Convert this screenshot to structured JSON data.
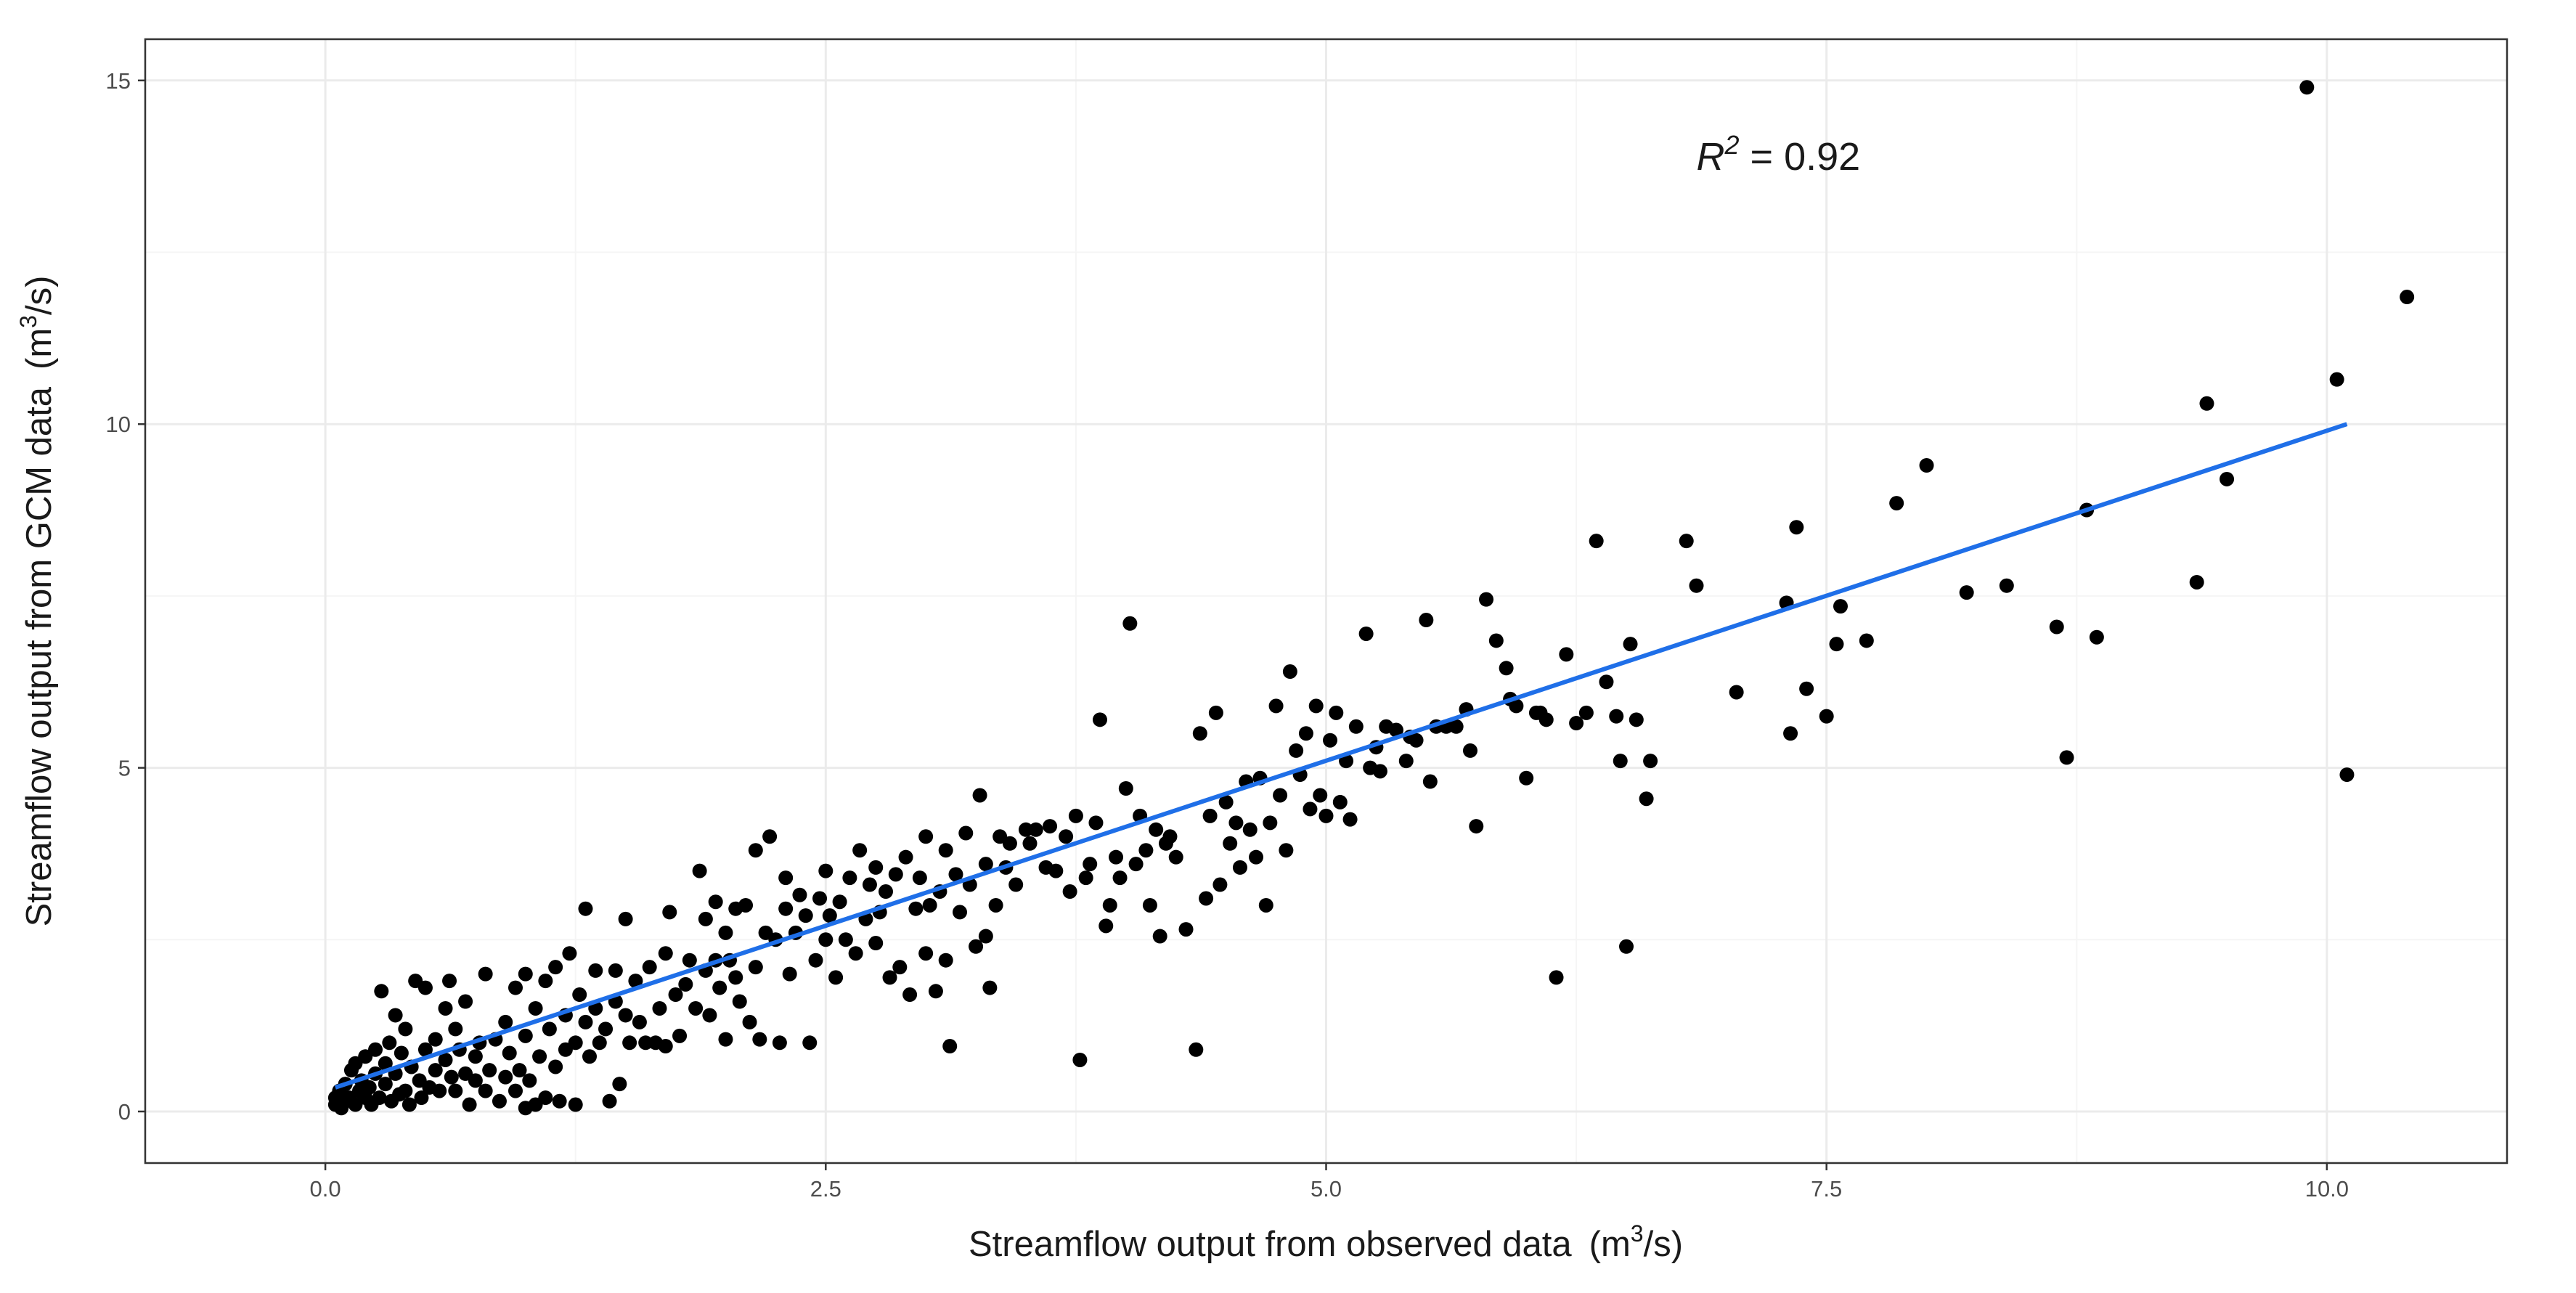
{
  "chart_data": {
    "type": "scatter",
    "title": "",
    "xlabel": {
      "prefix": "Streamflow output from observed data",
      "unit_open": "(m",
      "unit_sup": "3",
      "unit_close": "/s)"
    },
    "ylabel": {
      "prefix": "Streamflow output from GCM data",
      "unit_open": "(m",
      "unit_sup": "3",
      "unit_close": "/s)"
    },
    "xlim": [
      -0.9,
      10.9
    ],
    "ylim": [
      -0.75,
      15.6
    ],
    "x_ticks": [
      0.0,
      2.5,
      5.0,
      7.5,
      10.0
    ],
    "x_tick_labels": [
      "0.0",
      "2.5",
      "5.0",
      "7.5",
      "10.0"
    ],
    "y_ticks": [
      0,
      5,
      10,
      15
    ],
    "y_tick_labels": [
      "0",
      "5",
      "10",
      "15"
    ],
    "grid": true,
    "annotation": {
      "symbol": "R",
      "sup": "2",
      "text": " = 0.92",
      "x": 6.85,
      "y": 13.7
    },
    "colors": {
      "points": "#000000",
      "fit_line": "#1f6fe8",
      "grid_major": "#ebebeb",
      "grid_minor": "#f5f5f5",
      "panel_border": "#333333",
      "background": "#ffffff"
    },
    "fit_line": {
      "x": [
        0.05,
        10.1
      ],
      "y": [
        0.35,
        10.0
      ]
    },
    "series": [
      {
        "name": "points",
        "points": [
          [
            0.05,
            0.1
          ],
          [
            0.05,
            0.2
          ],
          [
            0.07,
            0.3
          ],
          [
            0.08,
            0.05
          ],
          [
            0.1,
            0.15
          ],
          [
            0.1,
            0.4
          ],
          [
            0.12,
            0.2
          ],
          [
            0.13,
            0.6
          ],
          [
            0.15,
            0.1
          ],
          [
            0.15,
            0.7
          ],
          [
            0.17,
            0.3
          ],
          [
            0.18,
            0.45
          ],
          [
            0.2,
            0.2
          ],
          [
            0.2,
            0.8
          ],
          [
            0.22,
            0.35
          ],
          [
            0.23,
            0.1
          ],
          [
            0.25,
            0.55
          ],
          [
            0.25,
            0.9
          ],
          [
            0.27,
            0.2
          ],
          [
            0.28,
            1.75
          ],
          [
            0.3,
            0.4
          ],
          [
            0.3,
            0.7
          ],
          [
            0.32,
            1.0
          ],
          [
            0.33,
            0.15
          ],
          [
            0.35,
            1.4
          ],
          [
            0.35,
            0.55
          ],
          [
            0.37,
            0.25
          ],
          [
            0.38,
            0.85
          ],
          [
            0.4,
            0.3
          ],
          [
            0.4,
            1.2
          ],
          [
            0.42,
            0.1
          ],
          [
            0.43,
            0.65
          ],
          [
            0.45,
            1.9
          ],
          [
            0.47,
            0.45
          ],
          [
            0.48,
            0.2
          ],
          [
            0.5,
            1.8
          ],
          [
            0.5,
            0.9
          ],
          [
            0.52,
            0.35
          ],
          [
            0.55,
            1.05
          ],
          [
            0.55,
            0.6
          ],
          [
            0.57,
            0.3
          ],
          [
            0.6,
            1.5
          ],
          [
            0.6,
            0.75
          ],
          [
            0.62,
            1.9
          ],
          [
            0.63,
            0.5
          ],
          [
            0.65,
            1.2
          ],
          [
            0.65,
            0.3
          ],
          [
            0.67,
            0.9
          ],
          [
            0.7,
            0.55
          ],
          [
            0.7,
            1.6
          ],
          [
            0.72,
            0.1
          ],
          [
            0.75,
            0.8
          ],
          [
            0.75,
            0.45
          ],
          [
            0.77,
            1.0
          ],
          [
            0.8,
            0.3
          ],
          [
            0.8,
            2.0
          ],
          [
            0.82,
            0.6
          ],
          [
            0.85,
            1.05
          ],
          [
            0.87,
            0.15
          ],
          [
            0.9,
            0.5
          ],
          [
            0.9,
            1.3
          ],
          [
            0.92,
            0.85
          ],
          [
            0.95,
            0.3
          ],
          [
            0.95,
            1.8
          ],
          [
            0.97,
            0.6
          ],
          [
            1.0,
            2.0
          ],
          [
            1.0,
            1.1
          ],
          [
            1.0,
            0.05
          ],
          [
            1.02,
            0.45
          ],
          [
            1.05,
            1.5
          ],
          [
            1.05,
            0.1
          ],
          [
            1.07,
            0.8
          ],
          [
            1.1,
            1.9
          ],
          [
            1.1,
            0.2
          ],
          [
            1.12,
            1.2
          ],
          [
            1.15,
            0.65
          ],
          [
            1.15,
            2.1
          ],
          [
            1.17,
            0.15
          ],
          [
            1.2,
            1.4
          ],
          [
            1.2,
            0.9
          ],
          [
            1.22,
            2.3
          ],
          [
            1.25,
            0.1
          ],
          [
            1.25,
            1.0
          ],
          [
            1.27,
            1.7
          ],
          [
            1.3,
            2.95
          ],
          [
            1.3,
            1.3
          ],
          [
            1.32,
            0.8
          ],
          [
            1.35,
            1.5
          ],
          [
            1.35,
            2.05
          ],
          [
            1.37,
            1.0
          ],
          [
            1.4,
            1.2
          ],
          [
            1.42,
            0.15
          ],
          [
            1.45,
            1.6
          ],
          [
            1.45,
            2.05
          ],
          [
            1.47,
            0.4
          ],
          [
            1.5,
            2.8
          ],
          [
            1.5,
            1.4
          ],
          [
            1.52,
            1.0
          ],
          [
            1.55,
            1.9
          ],
          [
            1.57,
            1.3
          ],
          [
            1.6,
            1.0
          ],
          [
            1.62,
            2.1
          ],
          [
            1.65,
            1.0
          ],
          [
            1.67,
            1.5
          ],
          [
            1.7,
            2.3
          ],
          [
            1.7,
            0.95
          ],
          [
            1.72,
            2.9
          ],
          [
            1.75,
            1.7
          ],
          [
            1.77,
            1.1
          ],
          [
            1.8,
            1.85
          ],
          [
            1.82,
            2.2
          ],
          [
            1.85,
            1.5
          ],
          [
            1.87,
            3.5
          ],
          [
            1.9,
            2.05
          ],
          [
            1.9,
            2.8
          ],
          [
            1.92,
            1.4
          ],
          [
            1.95,
            2.2
          ],
          [
            1.95,
            3.05
          ],
          [
            1.97,
            1.8
          ],
          [
            2.0,
            1.05
          ],
          [
            2.0,
            2.6
          ],
          [
            2.02,
            2.2
          ],
          [
            2.05,
            1.95
          ],
          [
            2.05,
            2.95
          ],
          [
            2.07,
            1.6
          ],
          [
            2.1,
            3.0
          ],
          [
            2.12,
            1.3
          ],
          [
            2.15,
            2.1
          ],
          [
            2.15,
            3.8
          ],
          [
            2.17,
            1.05
          ],
          [
            2.2,
            2.6
          ],
          [
            2.22,
            4.0
          ],
          [
            2.25,
            2.5
          ],
          [
            2.27,
            1.0
          ],
          [
            2.3,
            2.95
          ],
          [
            2.3,
            3.4
          ],
          [
            2.32,
            2.0
          ],
          [
            2.35,
            2.6
          ],
          [
            2.37,
            3.15
          ],
          [
            2.4,
            2.85
          ],
          [
            2.42,
            1.0
          ],
          [
            2.45,
            2.2
          ],
          [
            2.47,
            3.1
          ],
          [
            2.5,
            2.5
          ],
          [
            2.5,
            3.5
          ],
          [
            2.52,
            2.85
          ],
          [
            2.55,
            1.95
          ],
          [
            2.57,
            3.05
          ],
          [
            2.6,
            2.5
          ],
          [
            2.62,
            3.4
          ],
          [
            2.65,
            2.3
          ],
          [
            2.67,
            3.8
          ],
          [
            2.7,
            2.8
          ],
          [
            2.72,
            3.3
          ],
          [
            2.75,
            3.55
          ],
          [
            2.75,
            2.45
          ],
          [
            2.77,
            2.9
          ],
          [
            2.8,
            3.2
          ],
          [
            2.82,
            1.95
          ],
          [
            2.85,
            3.45
          ],
          [
            2.87,
            2.1
          ],
          [
            2.9,
            3.7
          ],
          [
            2.92,
            1.7
          ],
          [
            2.95,
            2.95
          ],
          [
            2.97,
            3.4
          ],
          [
            3.0,
            4.0
          ],
          [
            3.0,
            2.3
          ],
          [
            3.02,
            3.0
          ],
          [
            3.05,
            1.75
          ],
          [
            3.07,
            3.2
          ],
          [
            3.1,
            3.8
          ],
          [
            3.1,
            2.2
          ],
          [
            3.12,
            0.95
          ],
          [
            3.15,
            3.45
          ],
          [
            3.17,
            2.9
          ],
          [
            3.2,
            4.05
          ],
          [
            3.22,
            3.3
          ],
          [
            3.25,
            2.4
          ],
          [
            3.27,
            4.6
          ],
          [
            3.3,
            2.55
          ],
          [
            3.3,
            3.6
          ],
          [
            3.32,
            1.8
          ],
          [
            3.35,
            3.0
          ],
          [
            3.37,
            4.0
          ],
          [
            3.4,
            3.55
          ],
          [
            3.42,
            3.9
          ],
          [
            3.45,
            3.3
          ],
          [
            3.5,
            4.1
          ],
          [
            3.52,
            3.9
          ],
          [
            3.55,
            4.1
          ],
          [
            3.6,
            3.55
          ],
          [
            3.62,
            4.15
          ],
          [
            3.65,
            3.5
          ],
          [
            3.7,
            4.0
          ],
          [
            3.72,
            3.2
          ],
          [
            3.75,
            4.3
          ],
          [
            3.77,
            0.75
          ],
          [
            3.8,
            3.4
          ],
          [
            3.82,
            3.6
          ],
          [
            3.85,
            4.2
          ],
          [
            3.87,
            5.7
          ],
          [
            3.9,
            2.7
          ],
          [
            3.92,
            3.0
          ],
          [
            3.95,
            3.7
          ],
          [
            3.97,
            3.4
          ],
          [
            4.0,
            4.7
          ],
          [
            4.02,
            7.1
          ],
          [
            4.05,
            3.6
          ],
          [
            4.07,
            4.3
          ],
          [
            4.1,
            3.8
          ],
          [
            4.12,
            3.0
          ],
          [
            4.15,
            4.1
          ],
          [
            4.17,
            2.55
          ],
          [
            4.2,
            3.9
          ],
          [
            4.22,
            4.0
          ],
          [
            4.25,
            3.7
          ],
          [
            4.3,
            2.65
          ],
          [
            4.35,
            0.9
          ],
          [
            4.37,
            5.5
          ],
          [
            4.4,
            3.1
          ],
          [
            4.42,
            4.3
          ],
          [
            4.45,
            5.8
          ],
          [
            4.47,
            3.3
          ],
          [
            4.5,
            4.5
          ],
          [
            4.52,
            3.9
          ],
          [
            4.55,
            4.2
          ],
          [
            4.57,
            3.55
          ],
          [
            4.6,
            4.8
          ],
          [
            4.62,
            4.1
          ],
          [
            4.65,
            3.7
          ],
          [
            4.67,
            4.85
          ],
          [
            4.7,
            3.0
          ],
          [
            4.72,
            4.2
          ],
          [
            4.75,
            5.9
          ],
          [
            4.77,
            4.6
          ],
          [
            4.8,
            3.8
          ],
          [
            4.82,
            6.4
          ],
          [
            4.85,
            5.25
          ],
          [
            4.87,
            4.9
          ],
          [
            4.9,
            5.5
          ],
          [
            4.92,
            4.4
          ],
          [
            4.95,
            5.9
          ],
          [
            4.97,
            4.6
          ],
          [
            5.0,
            4.3
          ],
          [
            5.02,
            5.4
          ],
          [
            5.05,
            5.8
          ],
          [
            5.07,
            4.5
          ],
          [
            5.1,
            5.1
          ],
          [
            5.12,
            4.25
          ],
          [
            5.15,
            5.6
          ],
          [
            5.2,
            6.95
          ],
          [
            5.22,
            5.0
          ],
          [
            5.25,
            5.3
          ],
          [
            5.27,
            4.95
          ],
          [
            5.3,
            5.6
          ],
          [
            5.35,
            5.55
          ],
          [
            5.4,
            5.1
          ],
          [
            5.42,
            5.45
          ],
          [
            5.45,
            5.4
          ],
          [
            5.5,
            7.15
          ],
          [
            5.52,
            4.8
          ],
          [
            5.55,
            5.6
          ],
          [
            5.6,
            5.6
          ],
          [
            5.65,
            5.6
          ],
          [
            5.7,
            5.85
          ],
          [
            5.72,
            5.25
          ],
          [
            5.75,
            4.15
          ],
          [
            5.8,
            7.45
          ],
          [
            5.85,
            6.85
          ],
          [
            5.9,
            6.45
          ],
          [
            5.92,
            6.0
          ],
          [
            5.95,
            5.9
          ],
          [
            6.0,
            4.85
          ],
          [
            6.05,
            5.8
          ],
          [
            6.07,
            5.8
          ],
          [
            6.1,
            5.7
          ],
          [
            6.15,
            1.95
          ],
          [
            6.2,
            6.65
          ],
          [
            6.25,
            5.65
          ],
          [
            6.3,
            5.8
          ],
          [
            6.35,
            8.3
          ],
          [
            6.4,
            6.25
          ],
          [
            6.45,
            5.75
          ],
          [
            6.47,
            5.1
          ],
          [
            6.5,
            2.4
          ],
          [
            6.52,
            6.8
          ],
          [
            6.55,
            5.7
          ],
          [
            6.6,
            4.55
          ],
          [
            6.62,
            5.1
          ],
          [
            6.8,
            8.3
          ],
          [
            6.85,
            7.65
          ],
          [
            7.05,
            6.1
          ],
          [
            7.3,
            7.4
          ],
          [
            7.32,
            5.5
          ],
          [
            7.35,
            8.5
          ],
          [
            7.4,
            6.15
          ],
          [
            7.5,
            5.75
          ],
          [
            7.55,
            6.8
          ],
          [
            7.57,
            7.35
          ],
          [
            7.7,
            6.85
          ],
          [
            7.85,
            8.85
          ],
          [
            8.0,
            9.4
          ],
          [
            8.2,
            7.55
          ],
          [
            8.4,
            7.65
          ],
          [
            8.65,
            7.05
          ],
          [
            8.7,
            5.15
          ],
          [
            8.8,
            8.75
          ],
          [
            8.85,
            6.9
          ],
          [
            9.35,
            7.7
          ],
          [
            9.4,
            10.3
          ],
          [
            9.5,
            9.2
          ],
          [
            9.9,
            14.9
          ],
          [
            10.05,
            10.65
          ],
          [
            10.4,
            11.85
          ],
          [
            10.1,
            4.9
          ]
        ]
      }
    ]
  }
}
